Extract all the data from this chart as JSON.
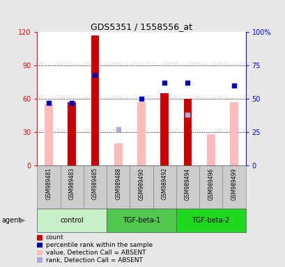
{
  "title": "GDS5351 / 1558556_at",
  "samples": [
    "GSM989481",
    "GSM989483",
    "GSM989485",
    "GSM989488",
    "GSM989490",
    "GSM989492",
    "GSM989494",
    "GSM989496",
    "GSM989499"
  ],
  "groups": [
    {
      "label": "control",
      "indices": [
        0,
        1,
        2
      ],
      "color": "#c8f0c8"
    },
    {
      "label": "TGF-beta-1",
      "indices": [
        3,
        4,
        5
      ],
      "color": "#50c850"
    },
    {
      "label": "TGF-beta-2",
      "indices": [
        6,
        7,
        8
      ],
      "color": "#20d820"
    }
  ],
  "count_values": [
    0,
    57,
    117,
    0,
    0,
    65,
    60,
    0,
    0
  ],
  "percentile_rank_values": [
    47,
    47,
    68,
    0,
    50,
    62,
    62,
    0,
    60
  ],
  "absent_value": [
    55,
    0,
    0,
    20,
    57,
    0,
    0,
    28,
    57
  ],
  "absent_rank": [
    0,
    0,
    0,
    27,
    0,
    0,
    38,
    0,
    0
  ],
  "ylim_left": [
    0,
    120
  ],
  "ylim_right": [
    0,
    100
  ],
  "yticks_left": [
    0,
    30,
    60,
    90,
    120
  ],
  "ytick_labels_left": [
    "0",
    "30",
    "60",
    "90",
    "120"
  ],
  "yticks_right_pct": [
    0,
    25,
    50,
    75,
    100
  ],
  "ytick_labels_right": [
    "0",
    "25",
    "50",
    "75",
    "100%"
  ],
  "bar_width": 0.35,
  "count_color": "#cc0000",
  "percentile_color": "#0000bb",
  "absent_value_color": "#ffbbbb",
  "absent_rank_color": "#aaaadd",
  "bg_color": "#e8e8e8",
  "plot_bg_color": "#ffffff",
  "sample_box_color": "#cccccc",
  "legend_items": [
    {
      "color": "#cc0000",
      "label": "count"
    },
    {
      "color": "#0000bb",
      "label": "percentile rank within the sample"
    },
    {
      "color": "#ffbbbb",
      "label": "value, Detection Call = ABSENT"
    },
    {
      "color": "#aaaadd",
      "label": "rank, Detection Call = ABSENT"
    }
  ]
}
